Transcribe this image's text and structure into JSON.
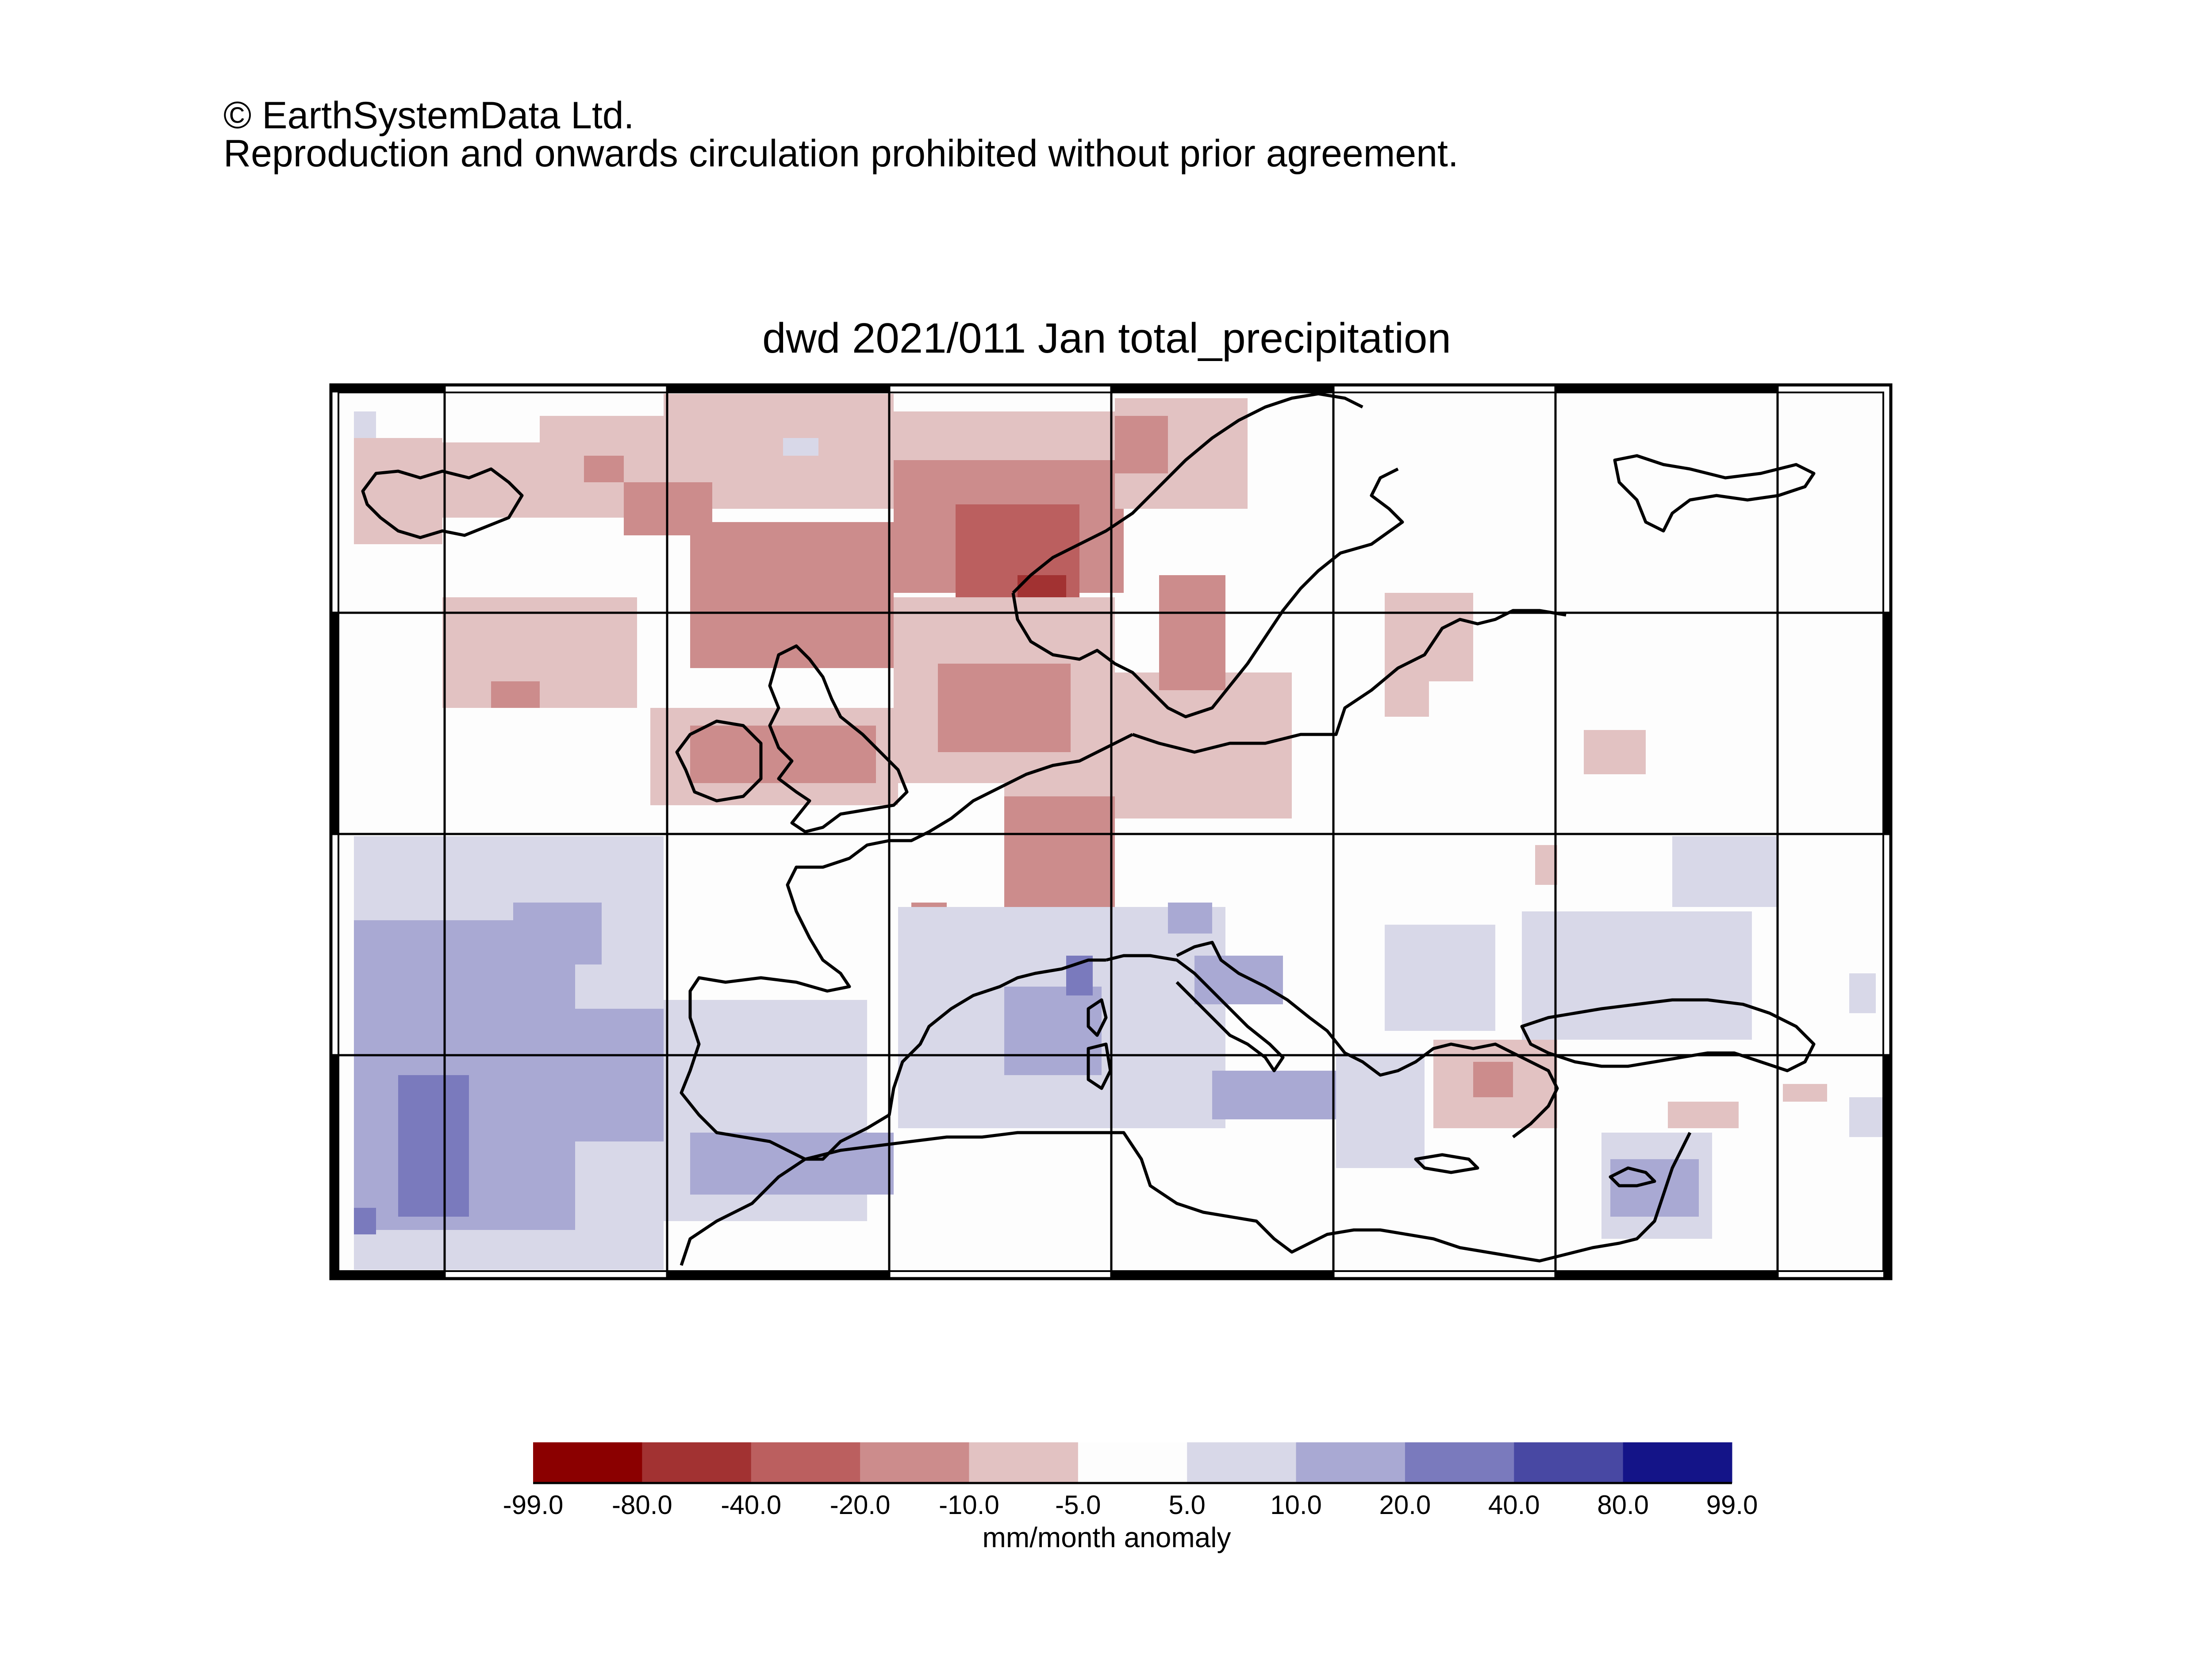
{
  "copyright": {
    "line1": "© EarthSystemData Ltd.",
    "line2": "Reproduction and onwards circulation prohibited without prior agreement."
  },
  "title": "dwd 2021/011 Jan total_precipitation",
  "legend": {
    "unit": "mm/month anomaly",
    "ticks": [
      "-99.0",
      "-80.0",
      "-40.0",
      "-20.0",
      "-10.0",
      "-5.0",
      "5.0",
      "10.0",
      "20.0",
      "40.0",
      "80.0",
      "99.0"
    ],
    "colors": [
      "#8b0000",
      "#a23232",
      "#bb5f5f",
      "#cc8c8c",
      "#e2c2c2",
      "#fdfdfd",
      "#d8d8e8",
      "#a9a9d3",
      "#7a7abd",
      "#4848a3",
      "#141488"
    ]
  },
  "map": {
    "region": "Europe / North Atlantic / Mediterranean",
    "grid_lines": "on",
    "cells": [
      {
        "area": "Iceland / North Atlantic",
        "class": "-10.0 to -5.0"
      },
      {
        "area": "Norway coast",
        "class": "-40.0 to -20.0"
      },
      {
        "area": "North Sea / Scandinavia",
        "class": "-20.0 to -10.0"
      },
      {
        "area": "British Isles",
        "class": "-20.0 to -10.0"
      },
      {
        "area": "Central Europe",
        "class": "-10.0 to -5.0"
      },
      {
        "area": "Eastern Atlantic",
        "class": "10.0 to 20.0"
      },
      {
        "area": "Western Atlantic south",
        "class": "20.0 to 40.0"
      },
      {
        "area": "Western Mediterranean",
        "class": "10.0 to 20.0"
      },
      {
        "area": "Black Sea",
        "class": "5.0 to 10.0"
      },
      {
        "area": "Aegean",
        "class": "-10.0 to -5.0"
      }
    ]
  }
}
